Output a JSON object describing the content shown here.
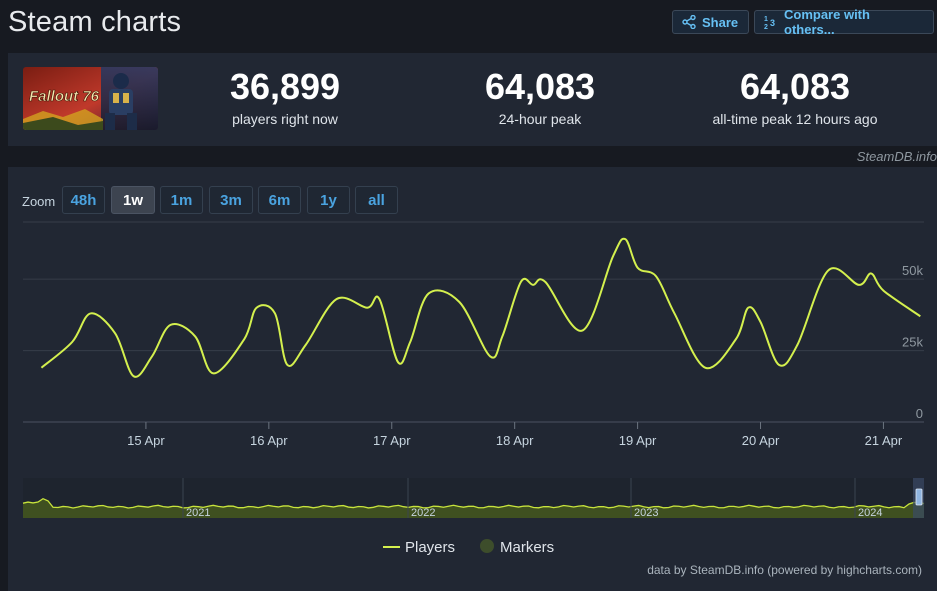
{
  "header": {
    "title": "Steam charts",
    "share_label": "Share",
    "compare_label": "Compare with others..."
  },
  "game": {
    "logo_text": "Fallout 76"
  },
  "stats": [
    {
      "value": "36,899",
      "label": "players right now"
    },
    {
      "value": "64,083",
      "label": "24-hour peak"
    },
    {
      "value": "64,083",
      "label": "all-time peak 12 hours ago"
    }
  ],
  "credit_top": "SteamDB.info",
  "zoom": {
    "label": "Zoom",
    "buttons": [
      "48h",
      "1w",
      "1m",
      "3m",
      "6m",
      "1y",
      "all"
    ],
    "active": "1w"
  },
  "legend": {
    "players": "Players",
    "markers": "Markers"
  },
  "credit_bottom": "data by SteamDB.info (powered by highcharts.com)",
  "colors": {
    "line": "#d4f04e",
    "marker": "#3d4d2b",
    "accent": "#66c0f4"
  },
  "chart_data": {
    "type": "line",
    "series_name": "Players",
    "x_unit": "days",
    "x_ticks": [
      "15 Apr",
      "16 Apr",
      "17 Apr",
      "18 Apr",
      "19 Apr",
      "20 Apr",
      "21 Apr"
    ],
    "y_ticks": [
      "0",
      "25k",
      "50k"
    ],
    "ylim": [
      0,
      70000
    ],
    "grid": true,
    "x": [
      14.15,
      14.4,
      14.55,
      14.75,
      14.9,
      15.05,
      15.2,
      15.4,
      15.55,
      15.8,
      15.9,
      16.05,
      16.15,
      16.3,
      16.55,
      16.8,
      16.9,
      17.05,
      17.15,
      17.3,
      17.55,
      17.8,
      17.9,
      18.05,
      18.15,
      18.25,
      18.55,
      18.8,
      18.9,
      19.0,
      19.15,
      19.3,
      19.55,
      19.8,
      19.9,
      20.0,
      20.15,
      20.3,
      20.55,
      20.8,
      20.9,
      21.0,
      21.3
    ],
    "y": [
      19000,
      28000,
      38000,
      31000,
      16000,
      23000,
      34000,
      30000,
      17000,
      29000,
      40000,
      38000,
      20000,
      27000,
      43000,
      40000,
      43000,
      21000,
      28000,
      45000,
      42000,
      23000,
      30000,
      49000,
      48000,
      49000,
      32000,
      58000,
      64000,
      54000,
      51000,
      38000,
      19000,
      29000,
      40000,
      35000,
      20000,
      27000,
      53000,
      48000,
      52000,
      46000,
      37000
    ],
    "navigator": {
      "x_ticks": [
        "2021",
        "2022",
        "2023",
        "2024"
      ]
    }
  }
}
